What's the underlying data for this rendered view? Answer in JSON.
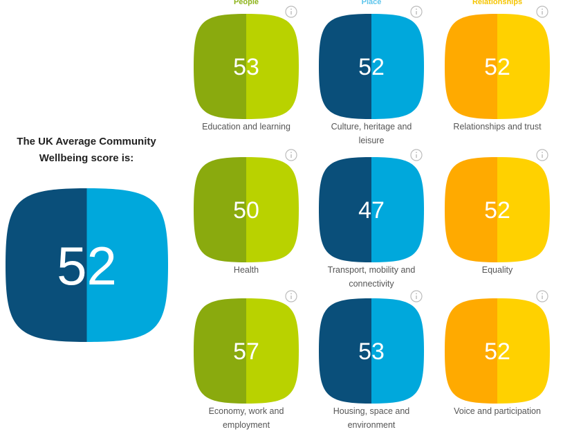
{
  "summary": {
    "heading": "The UK Average Community Wellbeing score is:",
    "value": "52"
  },
  "columns": [
    {
      "header": "People",
      "tiles": [
        {
          "value": "53",
          "label": "Education and learning"
        },
        {
          "value": "50",
          "label": "Health"
        },
        {
          "value": "57",
          "label": "Economy, work and employment"
        }
      ]
    },
    {
      "header": "Place",
      "tiles": [
        {
          "value": "52",
          "label": "Culture, heritage and leisure"
        },
        {
          "value": "47",
          "label": "Transport, mobility and connectivity"
        },
        {
          "value": "53",
          "label": "Housing, space and environment"
        }
      ]
    },
    {
      "header": "Relationships",
      "tiles": [
        {
          "value": "52",
          "label": "Relationships and trust"
        },
        {
          "value": "52",
          "label": "Equality"
        },
        {
          "value": "52",
          "label": "Voice and participation"
        }
      ]
    }
  ]
}
